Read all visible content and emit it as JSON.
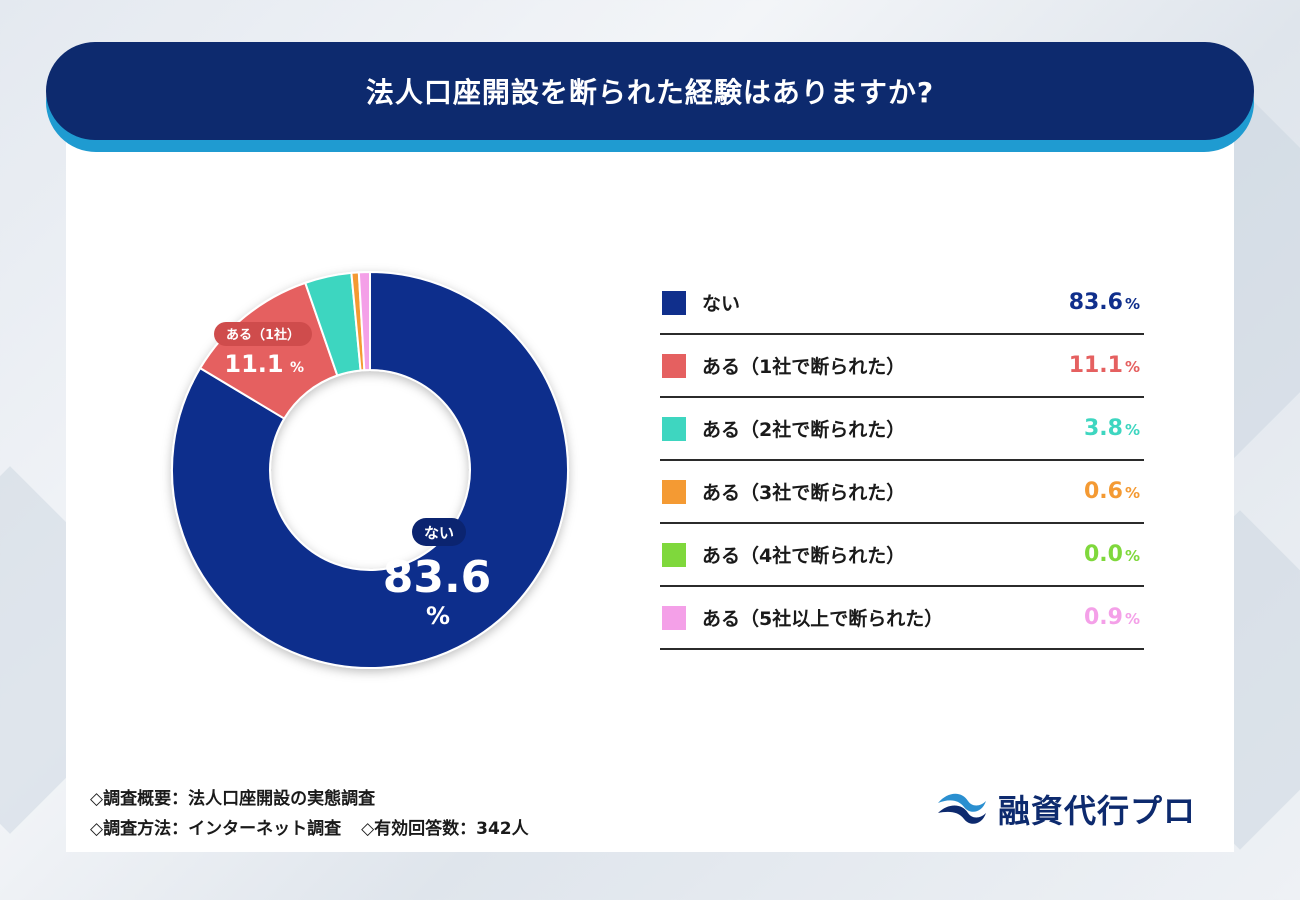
{
  "title": "法人口座開設を断られた経験はありますか?",
  "chart_data": {
    "type": "pie",
    "categories": [
      "ない",
      "ある（1社で断られた）",
      "ある（2社で断られた）",
      "ある（3社で断られた）",
      "ある（4社で断られた）",
      "ある（5社以上で断られた）"
    ],
    "values": [
      83.6,
      11.1,
      3.8,
      0.6,
      0.0,
      0.9
    ],
    "colors": [
      "#102f8c",
      "#e56060",
      "#3ed6c0",
      "#f49a33",
      "#7fd83c",
      "#f4a0e8"
    ],
    "unit": "%",
    "donut": true,
    "legend_position": "right",
    "slice_labels": {
      "nai": {
        "label": "ない",
        "value": "83.6",
        "unit": "%"
      },
      "one": {
        "label": "ある（1社）",
        "value": "11.1",
        "unit": "%"
      }
    }
  },
  "legend": [
    {
      "label": "ない",
      "value": "83.6",
      "unit": "%",
      "color": "#102f8c"
    },
    {
      "label": "ある（1社で断られた）",
      "value": "11.1",
      "unit": "%",
      "color": "#e56060"
    },
    {
      "label": "ある（2社で断られた）",
      "value": "3.8",
      "unit": "%",
      "color": "#3ed6c0"
    },
    {
      "label": "ある（3社で断られた）",
      "value": "0.6",
      "unit": "%",
      "color": "#f49a33"
    },
    {
      "label": "ある（4社で断られた）",
      "value": "0.0",
      "unit": "%",
      "color": "#7fd83c"
    },
    {
      "label": "ある（5社以上で断られた）",
      "value": "0.9",
      "unit": "%",
      "color": "#f4a0e8"
    }
  ],
  "footer": {
    "line1": "◇調査概要：法人口座開設の実態調査",
    "line2_a": "◇調査方法：インターネット調査",
    "line2_b": "◇有効回答数：342人"
  },
  "brand": {
    "name": "融資代行プロ",
    "icon": "wave-logo-icon"
  }
}
